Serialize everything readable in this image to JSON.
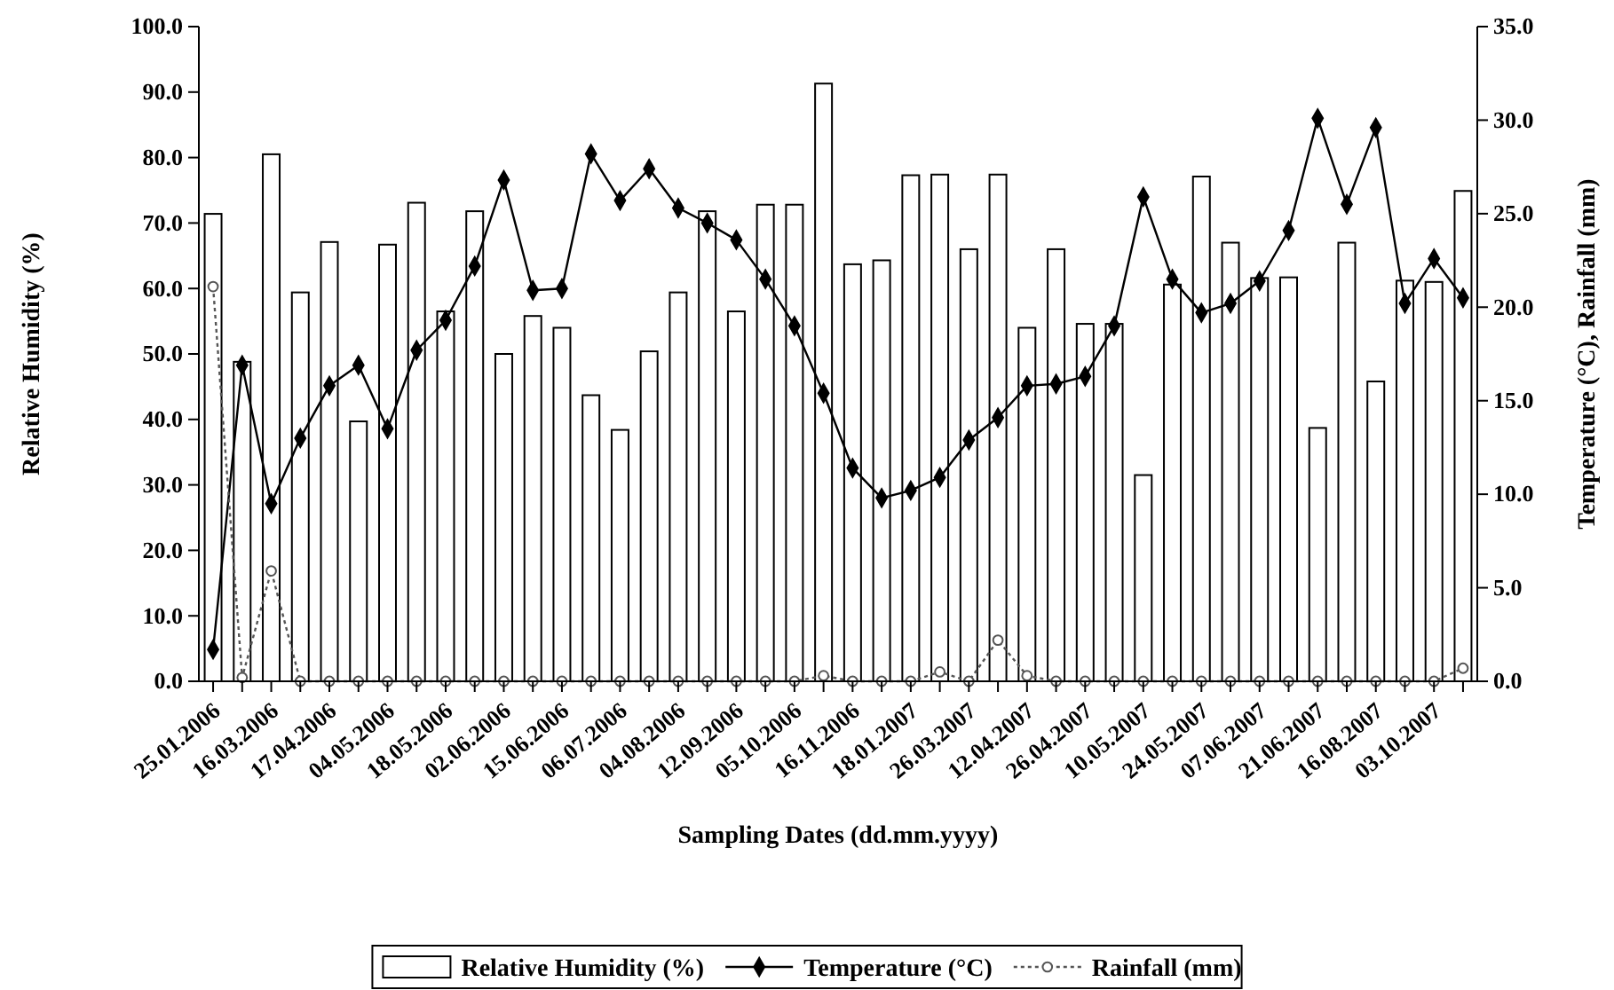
{
  "chart_data": {
    "type": "bar",
    "xlabel": "Sampling Dates (dd.mm.yyyy)",
    "ylabel": "Relative Humidity (%)",
    "y2label": "Temperature (°C), Rainfall (mm)",
    "categories": [
      "25.01.2006",
      null,
      "16.03.2006",
      null,
      "17.04.2006",
      null,
      "04.05.2006",
      null,
      "18.05.2006",
      null,
      "02.06.2006",
      null,
      "15.06.2006",
      null,
      "06.07.2006",
      null,
      "04.08.2006",
      null,
      "12.09.2006",
      null,
      "05.10.2006",
      null,
      "16.11.2006",
      null,
      "18.01.2007",
      null,
      "26.03.2007",
      null,
      "12.04.2007",
      null,
      "26.04.2007",
      null,
      "10.05.2007",
      null,
      "24.05.2007",
      null,
      "07.06.2007",
      null,
      "21.06.2007",
      null,
      "16.08.2007",
      null,
      "03.10.2007",
      null
    ],
    "series": [
      {
        "name": "Relative Humidity  (%)",
        "color": "#ffffff",
        "values": [
          71.4,
          48.8,
          80.5,
          59.4,
          67.1,
          39.7,
          66.7,
          73.1,
          56.5,
          71.8,
          50.0,
          55.8,
          54.0,
          43.7,
          38.4,
          50.4,
          59.4,
          71.8,
          56.5,
          72.8,
          72.8,
          91.3,
          63.7,
          64.3,
          77.3,
          77.4,
          66.0,
          77.4,
          54.0,
          66.0,
          54.6,
          54.6,
          31.5,
          60.6,
          77.1,
          67.0,
          61.6,
          61.7,
          38.7,
          67.0,
          45.8,
          61.2,
          61.0,
          74.9
        ]
      },
      {
        "name": "Temperature (°C)",
        "type": "line",
        "axis": "y2",
        "color": "#000000",
        "marker": "diamond",
        "line_style": "solid",
        "values": [
          1.7,
          16.9,
          9.5,
          13.0,
          15.8,
          16.9,
          13.5,
          17.7,
          19.3,
          22.2,
          26.8,
          20.9,
          21.0,
          28.2,
          25.7,
          27.4,
          25.3,
          24.5,
          23.6,
          21.5,
          19.0,
          15.4,
          11.4,
          9.8,
          10.2,
          10.9,
          12.9,
          14.1,
          15.8,
          15.9,
          16.3,
          19.0,
          25.9,
          21.5,
          19.7,
          20.2,
          21.4,
          24.1,
          30.1,
          25.5,
          29.6,
          20.2,
          22.6,
          20.5
        ]
      },
      {
        "name": "Rainfall (mm)",
        "type": "line",
        "axis": "y2",
        "color": "#555555",
        "marker": "circle",
        "line_style": "dotted",
        "values": [
          21.1,
          0.2,
          5.9,
          0,
          0,
          0,
          0,
          0,
          0,
          0,
          0,
          0,
          0,
          0,
          0,
          0,
          0,
          0,
          0,
          0,
          0,
          0.3,
          0,
          0,
          0,
          0.5,
          0,
          2.2,
          0.3,
          0,
          0,
          0,
          0,
          0,
          0,
          0,
          0,
          0,
          0,
          0,
          0,
          0,
          0,
          0.7
        ]
      }
    ],
    "ylim": [
      0,
      100
    ],
    "yticks": [
      {
        "value": 0,
        "label": "0.0"
      },
      {
        "value": 10,
        "label": "10.0"
      },
      {
        "value": 20,
        "label": "20.0"
      },
      {
        "value": 30,
        "label": "30.0"
      },
      {
        "value": 40,
        "label": "40.0"
      },
      {
        "value": 50,
        "label": "50.0"
      },
      {
        "value": 60,
        "label": "60.0"
      },
      {
        "value": 70,
        "label": "70.0"
      },
      {
        "value": 80,
        "label": "80.0"
      },
      {
        "value": 90,
        "label": "90.0"
      },
      {
        "value": 100,
        "label": "100.0"
      }
    ],
    "y2lim": [
      0,
      35
    ],
    "y2ticks": [
      {
        "value": 0,
        "label": "0.0"
      },
      {
        "value": 5,
        "label": "5.0"
      },
      {
        "value": 10,
        "label": "10.0"
      },
      {
        "value": 15,
        "label": "15.0"
      },
      {
        "value": 20,
        "label": "20.0"
      },
      {
        "value": 25,
        "label": "25.0"
      },
      {
        "value": 30,
        "label": "30.0"
      },
      {
        "value": 35,
        "label": "35.0"
      }
    ],
    "legend": "bottom",
    "grid": false
  }
}
